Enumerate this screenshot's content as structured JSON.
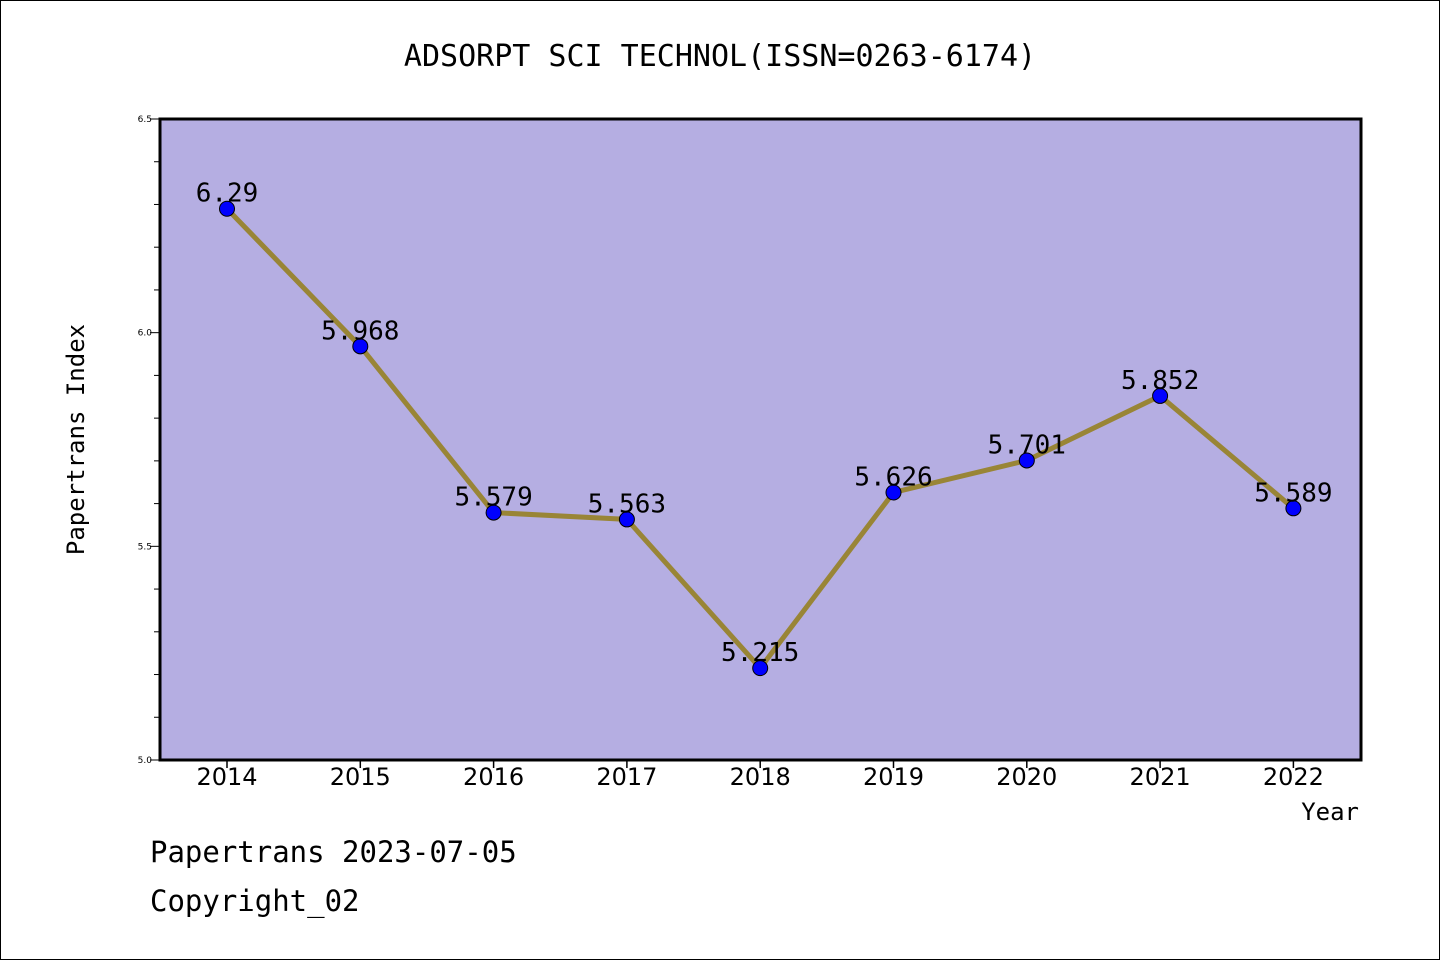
{
  "chart_data": {
    "type": "line",
    "title": "ADSORPT SCI TECHNOL(ISSN=0263-6174)",
    "xlabel": "Year",
    "ylabel": "Papertrans Index",
    "categories": [
      "2014",
      "2015",
      "2016",
      "2017",
      "2018",
      "2019",
      "2020",
      "2021",
      "2022"
    ],
    "values": [
      6.29,
      5.968,
      5.579,
      5.563,
      5.215,
      5.626,
      5.701,
      5.852,
      5.589
    ],
    "data_labels": [
      "6.29",
      "5.968",
      "5.579",
      "5.563",
      "5.215",
      "5.626",
      "5.701",
      "5.852",
      "5.589"
    ],
    "ylim": [
      5.0,
      6.5
    ],
    "yticks": [
      "5.0",
      "5.5",
      "6.0",
      "6.5"
    ],
    "grid": false,
    "colors": {
      "plot_background": "#b5aee2",
      "line": "#998536",
      "marker": "#0000ff"
    }
  },
  "footer": {
    "date_line": "Papertrans 2023-07-05",
    "copyright": "Copyright_02"
  }
}
